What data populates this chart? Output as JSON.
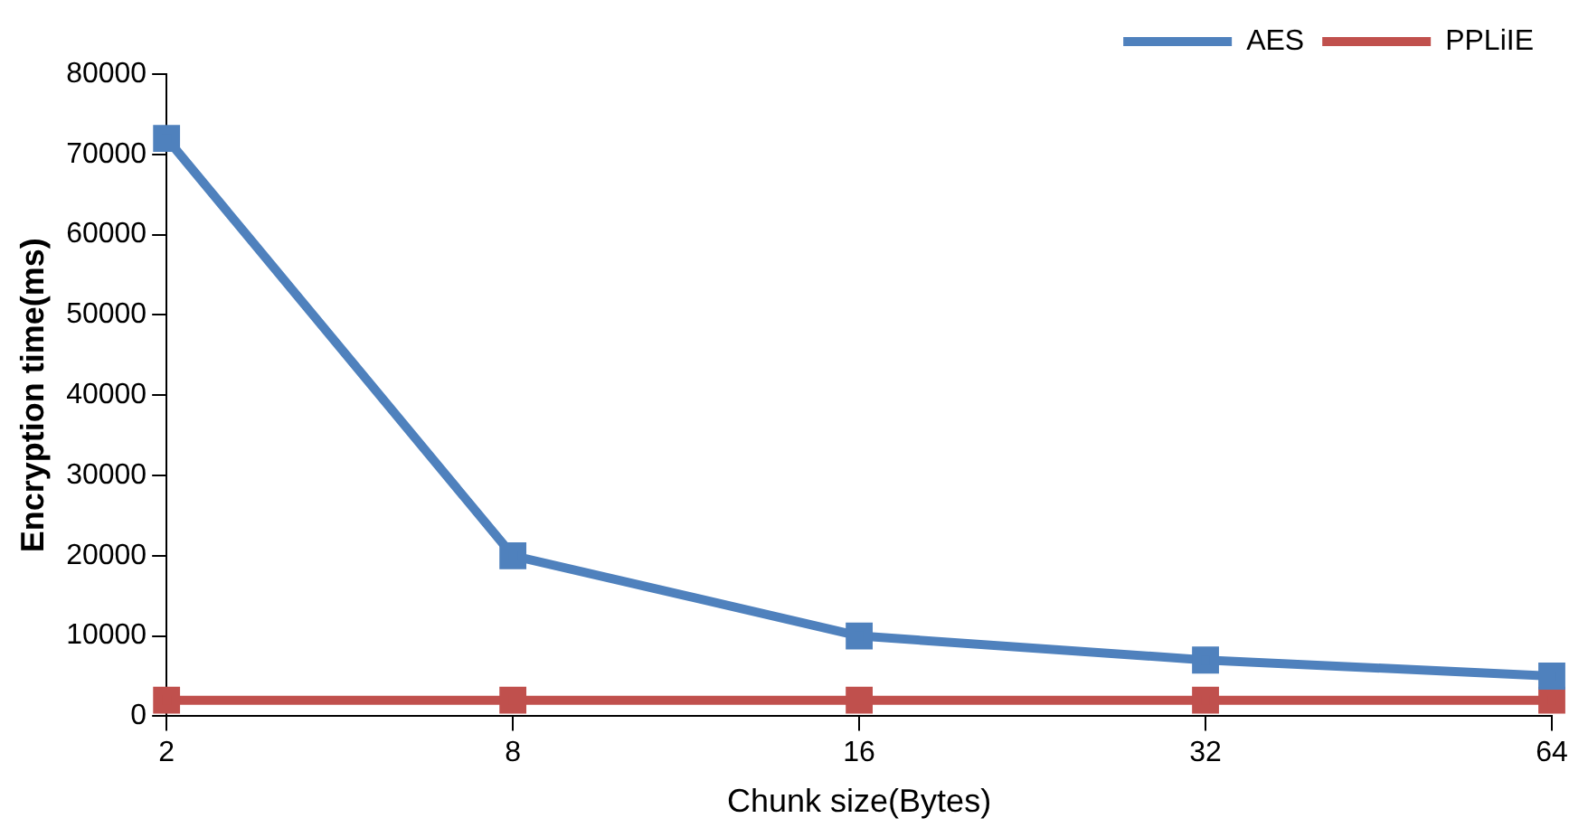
{
  "chart_data": {
    "type": "line",
    "xlabel": "Chunk size(Bytes)",
    "ylabel": "Encryption time(ms)",
    "categories": [
      "2",
      "8",
      "16",
      "32",
      "64"
    ],
    "series": [
      {
        "name": "AES",
        "color": "#4f81bd",
        "values": [
          72000,
          20000,
          10000,
          7000,
          5000
        ]
      },
      {
        "name": "PPLiIE",
        "color": "#c0504d",
        "values": [
          2000,
          2000,
          2000,
          2000,
          2000
        ]
      }
    ],
    "ylim": [
      0,
      80000
    ],
    "yticks": [
      0,
      10000,
      20000,
      30000,
      40000,
      50000,
      60000,
      70000,
      80000
    ],
    "grid": false,
    "legend": "top right",
    "marker": "square",
    "line_style": "solid"
  }
}
